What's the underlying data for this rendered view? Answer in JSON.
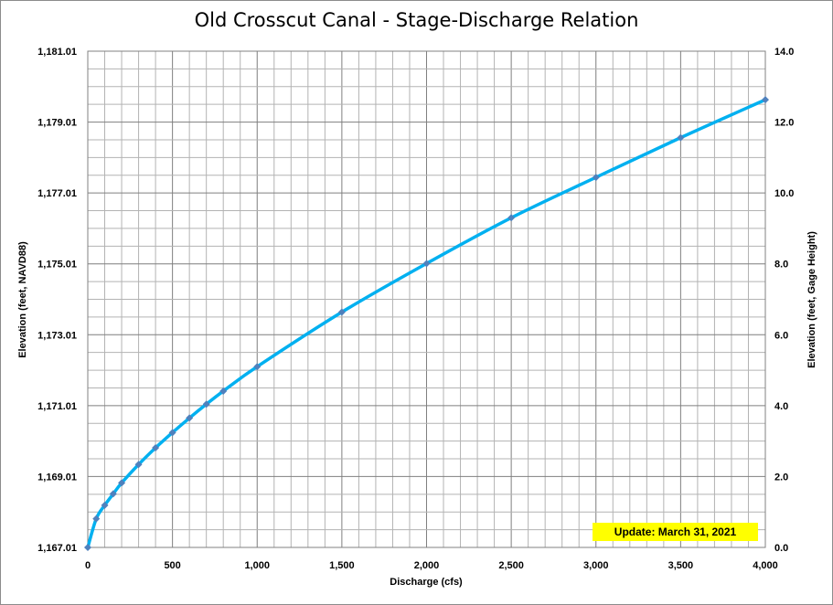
{
  "chart_data": {
    "type": "line",
    "title": "Old Crosscut Canal - Stage-Discharge Relation",
    "xlabel": "Discharge  (cfs)",
    "ylabel_left": "Elevation  (feet, NAVD88)",
    "ylabel_right": "Elevation  (feet, Gage Height)",
    "xlim": [
      0,
      4000
    ],
    "ylim_left": [
      1167.01,
      1181.01
    ],
    "ylim_right": [
      0.0,
      14.0
    ],
    "x_ticks": [
      "0",
      "500",
      "1,000",
      "1,500",
      "2,000",
      "2,500",
      "3,000",
      "3,500",
      "4,000"
    ],
    "y_left_ticks": [
      "1,167.01",
      "1,169.01",
      "1,171.01",
      "1,173.01",
      "1,175.01",
      "1,177.01",
      "1,179.01",
      "1,181.01"
    ],
    "y_right_ticks": [
      "0.0",
      "2.0",
      "4.0",
      "6.0",
      "8.0",
      "10.0",
      "12.0",
      "14.0"
    ],
    "grid": true,
    "line_color": "#00b0f0",
    "marker_color": "#4f81bd",
    "series": [
      {
        "x": [
          0,
          50,
          100,
          150,
          200,
          300,
          400,
          500,
          600,
          700,
          800,
          1000,
          1500,
          2000,
          2500,
          3000,
          3500,
          4000
        ],
        "y": [
          1167.01,
          1167.82,
          1168.2,
          1168.52,
          1168.83,
          1169.35,
          1169.82,
          1170.25,
          1170.66,
          1171.05,
          1171.42,
          1172.11,
          1173.65,
          1175.02,
          1176.31,
          1177.45,
          1178.57,
          1179.64
        ]
      }
    ],
    "annotation": "Update: March 31, 2021",
    "annotation_color": "#ffff00"
  }
}
